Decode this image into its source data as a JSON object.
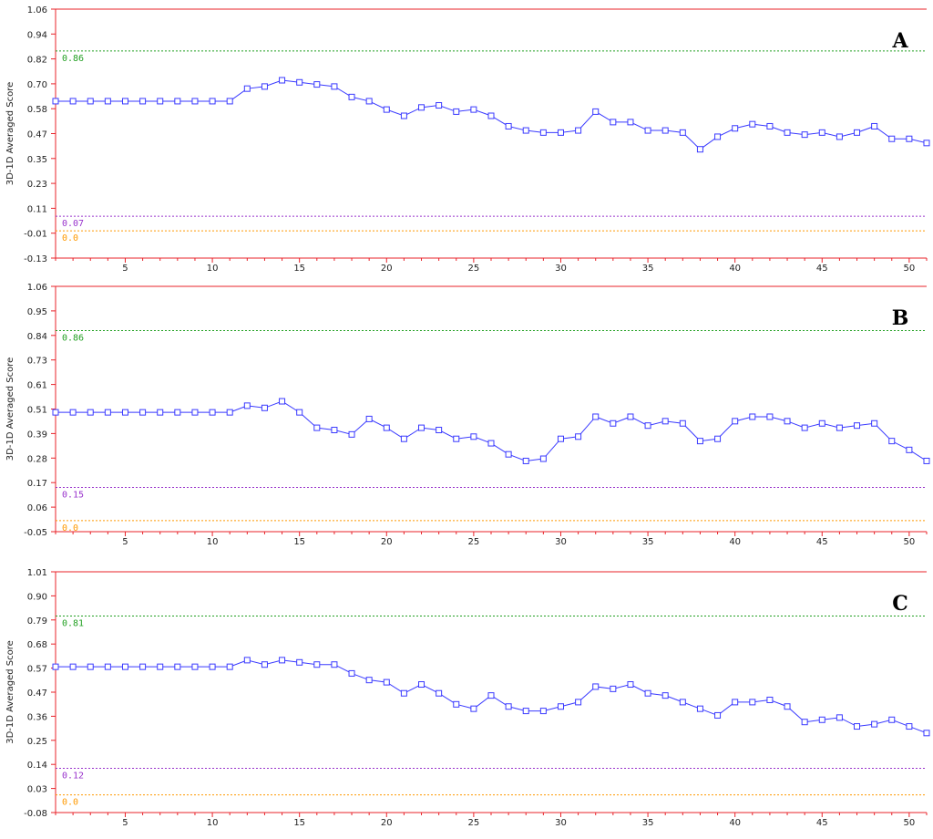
{
  "colors": {
    "axis": "#e8232a",
    "series": "#3a3aff",
    "ref_high": "#22a022",
    "ref_mid": "#9933cc",
    "ref_zero": "#ff9900"
  },
  "chart_data": [
    {
      "type": "line",
      "panel_label": "A",
      "ylabel": "3D-1D Averaged Score",
      "yticks": [
        "1.06",
        "0.94",
        "0.82",
        "0.70",
        "0.58",
        "0.47",
        "0.35",
        "0.23",
        "0.11",
        "-0.01",
        "-0.13"
      ],
      "ylim": [
        -0.13,
        1.06
      ],
      "xlim": [
        1,
        51
      ],
      "xticks": [
        5,
        10,
        15,
        20,
        25,
        30,
        35,
        40,
        45,
        50
      ],
      "reference_lines": [
        {
          "value": 0.86,
          "label": "0.86",
          "color": "ref_high"
        },
        {
          "value": 0.07,
          "label": "0.07",
          "color": "ref_mid"
        },
        {
          "value": 0.0,
          "label": "0.0",
          "color": "ref_zero"
        }
      ],
      "x": [
        1,
        2,
        3,
        4,
        5,
        6,
        7,
        8,
        9,
        10,
        11,
        12,
        13,
        14,
        15,
        16,
        17,
        18,
        19,
        20,
        21,
        22,
        23,
        24,
        25,
        26,
        27,
        28,
        29,
        30,
        31,
        32,
        33,
        34,
        35,
        36,
        37,
        38,
        39,
        40,
        41,
        42,
        43,
        44,
        45,
        46,
        47,
        48,
        49,
        50,
        51
      ],
      "values": [
        0.62,
        0.62,
        0.62,
        0.62,
        0.62,
        0.62,
        0.62,
        0.62,
        0.62,
        0.62,
        0.62,
        0.68,
        0.69,
        0.72,
        0.71,
        0.7,
        0.69,
        0.64,
        0.62,
        0.58,
        0.55,
        0.59,
        0.6,
        0.57,
        0.58,
        0.55,
        0.5,
        0.48,
        0.47,
        0.47,
        0.48,
        0.57,
        0.52,
        0.52,
        0.48,
        0.48,
        0.47,
        0.39,
        0.45,
        0.49,
        0.51,
        0.5,
        0.47,
        0.46,
        0.47,
        0.45,
        0.47,
        0.5,
        0.44,
        0.44,
        0.42
      ]
    },
    {
      "type": "line",
      "panel_label": "B",
      "ylabel": "3D-1D Averaged Score",
      "yticks": [
        "1.06",
        "0.95",
        "0.84",
        "0.73",
        "0.61",
        "0.51",
        "0.39",
        "0.28",
        "0.17",
        "0.06",
        "-0.05"
      ],
      "ylim": [
        -0.05,
        1.06
      ],
      "xlim": [
        1,
        51
      ],
      "xticks": [
        5,
        10,
        15,
        20,
        25,
        30,
        35,
        40,
        45,
        50
      ],
      "reference_lines": [
        {
          "value": 0.86,
          "label": "0.86",
          "color": "ref_high"
        },
        {
          "value": 0.15,
          "label": "0.15",
          "color": "ref_mid"
        },
        {
          "value": 0.0,
          "label": "0.0",
          "color": "ref_zero"
        }
      ],
      "x": [
        1,
        2,
        3,
        4,
        5,
        6,
        7,
        8,
        9,
        10,
        11,
        12,
        13,
        14,
        15,
        16,
        17,
        18,
        19,
        20,
        21,
        22,
        23,
        24,
        25,
        26,
        27,
        28,
        29,
        30,
        31,
        32,
        33,
        34,
        35,
        36,
        37,
        38,
        39,
        40,
        41,
        42,
        43,
        44,
        45,
        46,
        47,
        48,
        49,
        50,
        51
      ],
      "values": [
        0.49,
        0.49,
        0.49,
        0.49,
        0.49,
        0.49,
        0.49,
        0.49,
        0.49,
        0.49,
        0.49,
        0.52,
        0.51,
        0.54,
        0.49,
        0.42,
        0.41,
        0.39,
        0.46,
        0.42,
        0.37,
        0.42,
        0.41,
        0.37,
        0.38,
        0.35,
        0.3,
        0.27,
        0.28,
        0.37,
        0.38,
        0.47,
        0.44,
        0.47,
        0.43,
        0.45,
        0.44,
        0.36,
        0.37,
        0.45,
        0.47,
        0.47,
        0.45,
        0.42,
        0.44,
        0.42,
        0.43,
        0.44,
        0.36,
        0.32,
        0.27
      ]
    },
    {
      "type": "line",
      "panel_label": "C",
      "ylabel": "3D-1D Averaged Score",
      "yticks": [
        "1.01",
        "0.90",
        "0.79",
        "0.68",
        "0.57",
        "0.47",
        "0.36",
        "0.25",
        "0.14",
        "0.03",
        "-0.08"
      ],
      "ylim": [
        -0.08,
        1.01
      ],
      "xlim": [
        1,
        51
      ],
      "xticks": [
        5,
        10,
        15,
        20,
        25,
        30,
        35,
        40,
        45,
        50
      ],
      "reference_lines": [
        {
          "value": 0.81,
          "label": "0.81",
          "color": "ref_high"
        },
        {
          "value": 0.12,
          "label": "0.12",
          "color": "ref_mid"
        },
        {
          "value": 0.0,
          "label": "0.0",
          "color": "ref_zero"
        }
      ],
      "x": [
        1,
        2,
        3,
        4,
        5,
        6,
        7,
        8,
        9,
        10,
        11,
        12,
        13,
        14,
        15,
        16,
        17,
        18,
        19,
        20,
        21,
        22,
        23,
        24,
        25,
        26,
        27,
        28,
        29,
        30,
        31,
        32,
        33,
        34,
        35,
        36,
        37,
        38,
        39,
        40,
        41,
        42,
        43,
        44,
        45,
        46,
        47,
        48,
        49,
        50,
        51
      ],
      "values": [
        0.58,
        0.58,
        0.58,
        0.58,
        0.58,
        0.58,
        0.58,
        0.58,
        0.58,
        0.58,
        0.58,
        0.61,
        0.59,
        0.61,
        0.6,
        0.59,
        0.59,
        0.55,
        0.52,
        0.51,
        0.46,
        0.5,
        0.46,
        0.41,
        0.39,
        0.45,
        0.4,
        0.38,
        0.38,
        0.4,
        0.42,
        0.49,
        0.48,
        0.5,
        0.46,
        0.45,
        0.42,
        0.39,
        0.36,
        0.42,
        0.42,
        0.43,
        0.4,
        0.33,
        0.34,
        0.35,
        0.31,
        0.32,
        0.34,
        0.31,
        0.28
      ]
    }
  ]
}
